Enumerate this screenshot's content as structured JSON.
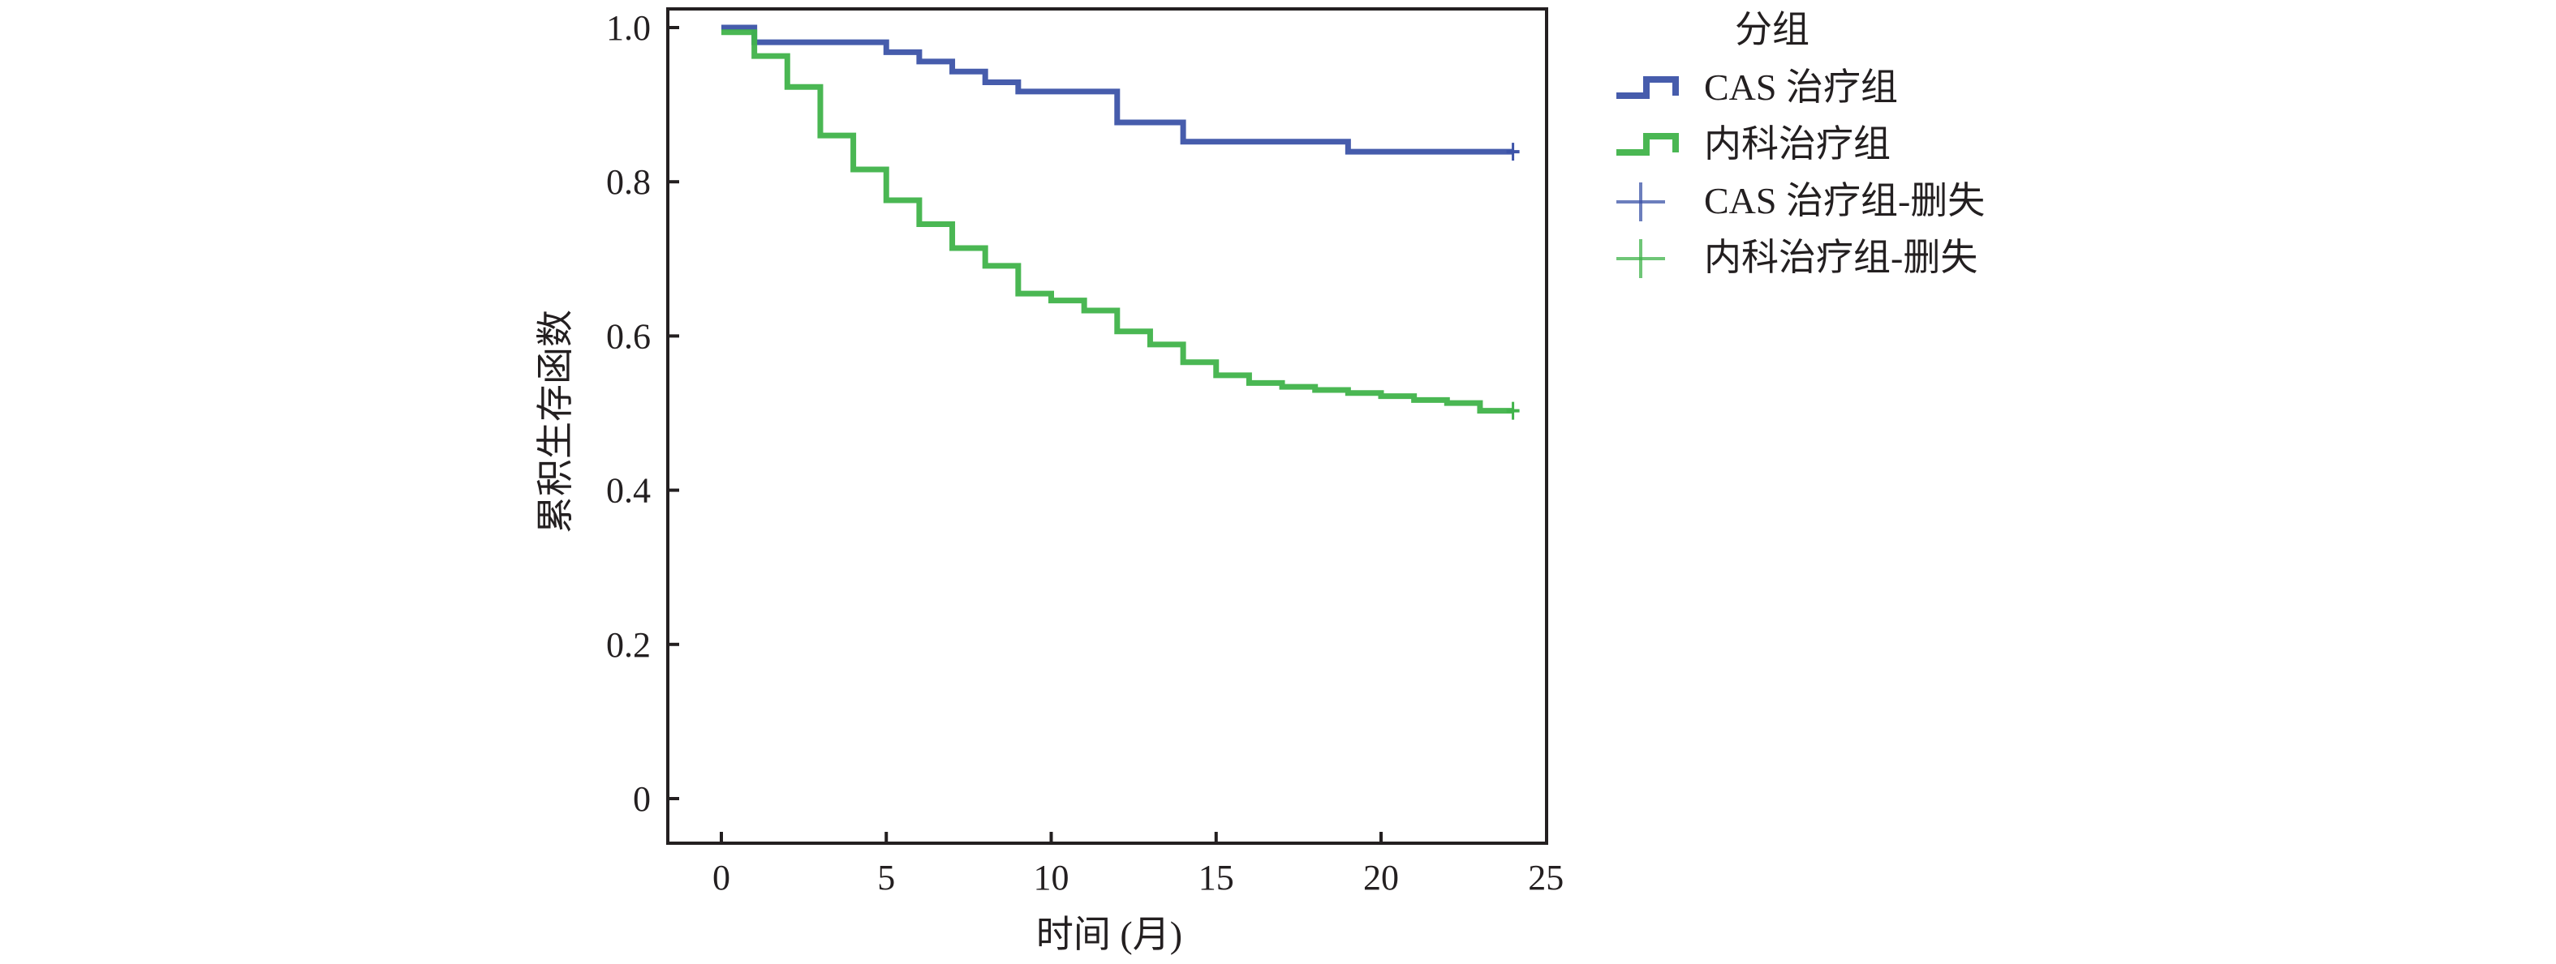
{
  "chart_data": {
    "type": "line",
    "subtype": "kaplan-meier-step",
    "title": "",
    "xlabel": "时间 (月)",
    "ylabel": "累积生存函数",
    "xlim": [
      -1.6,
      25
    ],
    "ylim": [
      -0.115,
      1.025
    ],
    "xticks": [
      0,
      5,
      10,
      15,
      20,
      25
    ],
    "xtick_labels": [
      "0",
      "5",
      "10",
      "15",
      "20",
      "25"
    ],
    "yticks": [
      0,
      0.2,
      0.4,
      0.6,
      0.8,
      1.0
    ],
    "ytick_labels": [
      "0",
      "0.2",
      "0.4",
      "0.6",
      "0.8",
      "1.0"
    ],
    "grid": false,
    "legend": {
      "title": "分组",
      "placement": "outside-right-top",
      "entries": [
        {
          "label": "CAS 治疗组",
          "kind": "step",
          "series": 0
        },
        {
          "label": "内科治疗组",
          "kind": "step",
          "series": 1
        },
        {
          "label": "CAS 治疗组-删失",
          "kind": "censor",
          "series": 0
        },
        {
          "label": "内科治疗组-删失",
          "kind": "censor",
          "series": 1
        }
      ]
    },
    "series": [
      {
        "name": "CAS 治疗组",
        "color": "#3c53a8",
        "x": [
          0,
          1,
          5,
          6,
          7,
          8,
          9,
          12,
          14,
          19,
          24
        ],
        "y": [
          1.0,
          0.981,
          0.968,
          0.956,
          0.943,
          0.929,
          0.917,
          0.877,
          0.852,
          0.839,
          0.839
        ],
        "censored": [
          {
            "x": 24,
            "y": 0.839
          }
        ]
      },
      {
        "name": "内科治疗组",
        "color": "#40b34a",
        "x": [
          0,
          1,
          2,
          3,
          4,
          5,
          6,
          7,
          8,
          9,
          10,
          11,
          12,
          13,
          14,
          15,
          16,
          17,
          18,
          19,
          20,
          21,
          22,
          23,
          24
        ],
        "y": [
          0.994,
          0.963,
          0.923,
          0.86,
          0.816,
          0.776,
          0.745,
          0.714,
          0.691,
          0.655,
          0.646,
          0.633,
          0.606,
          0.589,
          0.566,
          0.549,
          0.539,
          0.534,
          0.53,
          0.526,
          0.522,
          0.517,
          0.513,
          0.503,
          0.503
        ],
        "censored": [
          {
            "x": 24,
            "y": 0.503
          }
        ]
      }
    ]
  }
}
